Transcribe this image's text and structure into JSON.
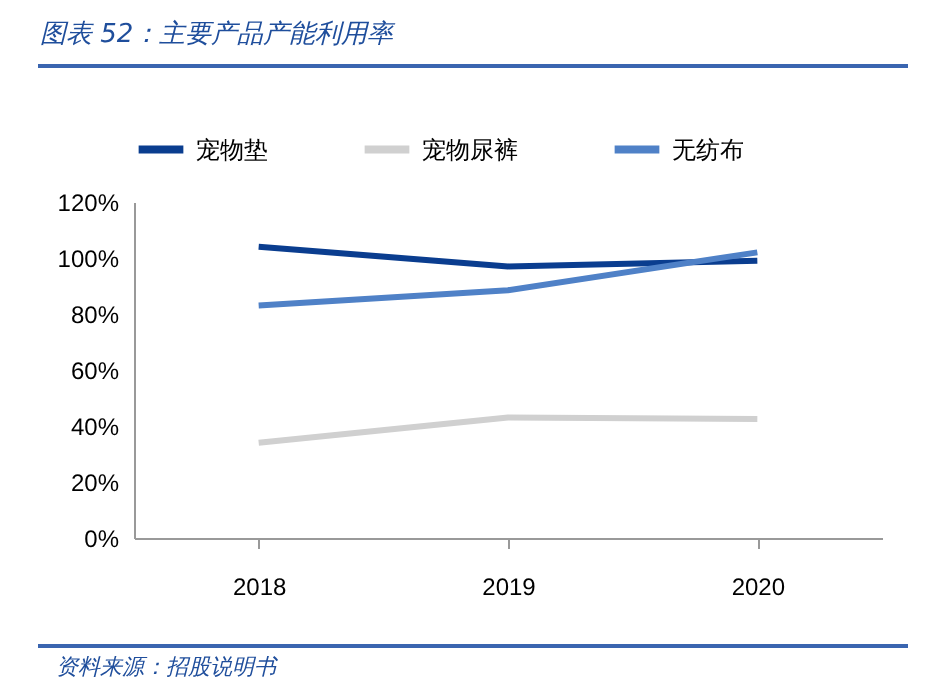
{
  "chart_data": {
    "type": "line",
    "title": "图表 52：主要产品产能利用率",
    "annotations": [
      "资料来源：招股说明书"
    ],
    "categories": [
      "2018",
      "2019",
      "2020"
    ],
    "series": [
      {
        "name": "宠物垫",
        "color": "#0a3d8f",
        "values": [
          104,
          97,
          99
        ]
      },
      {
        "name": "宠物尿裤",
        "color": "#d0d0d0",
        "values": [
          34,
          43,
          42.5
        ]
      },
      {
        "name": "无纺布",
        "color": "#4f81c7",
        "values": [
          83,
          88.5,
          102
        ]
      }
    ],
    "ylim": [
      0,
      120
    ],
    "yticks": [
      {
        "value": 0,
        "label": "0%"
      },
      {
        "value": 20,
        "label": "20%"
      },
      {
        "value": 40,
        "label": "40%"
      },
      {
        "value": 60,
        "label": "60%"
      },
      {
        "value": 80,
        "label": "80%"
      },
      {
        "value": 100,
        "label": "100%"
      },
      {
        "value": 120,
        "label": "120%"
      }
    ],
    "legend": "top"
  }
}
